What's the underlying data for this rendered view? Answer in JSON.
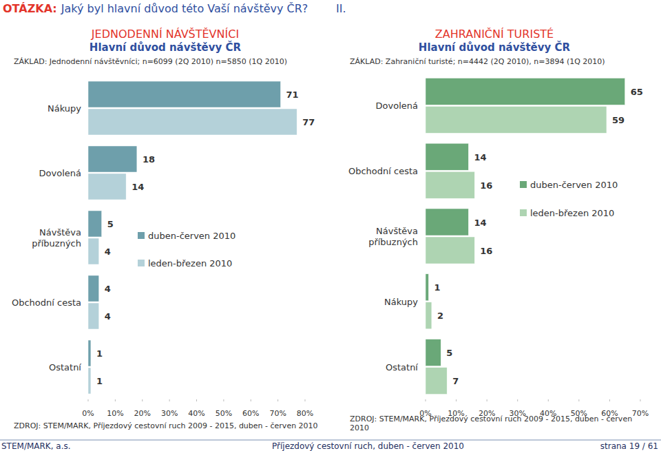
{
  "header": {
    "question_label": "OTÁZKA:",
    "question": "Jaký byl hlavní důvod této Vaší návštěvy ČR?",
    "roman": "II."
  },
  "footer": {
    "left": "STEM/MARK, a.s.",
    "center": "Příjezdový cestovní ruch, duben - červen 2010",
    "right": "strana 19 / 61"
  },
  "chart_data": [
    {
      "type": "bar",
      "orientation": "horizontal",
      "title": "JEDNODENNÍ NÁVŠTĚVNÍCI",
      "subtitle": "Hlavní důvod návštěvy ČR",
      "annotations": [
        "ZÁKLAD: Jednodenní návštěvníci; n=6099 (2Q 2010) n=5850 (1Q 2010)",
        "ZDROJ: STEM/MARK, Příjezdový cestovní ruch 2009 - 2015, duben - červen 2010"
      ],
      "categories": [
        "Nákupy",
        "Dovolená",
        "Návštěva příbuzných",
        "Obchodní cesta",
        "Ostatní"
      ],
      "series": [
        {
          "name": "duben-červen 2010",
          "color": "#6e9fab",
          "values": [
            71,
            18,
            5,
            4,
            1
          ]
        },
        {
          "name": "leden-březen 2010",
          "color": "#b4d1d9",
          "values": [
            77,
            14,
            4,
            4,
            1
          ]
        }
      ],
      "xlim": [
        0,
        80
      ],
      "xticks": [
        {
          "value": 0,
          "label": "0%"
        },
        {
          "value": 10,
          "label": "10%"
        },
        {
          "value": 20,
          "label": "20%"
        },
        {
          "value": 30,
          "label": "30%"
        },
        {
          "value": 40,
          "label": "40%"
        },
        {
          "value": 50,
          "label": "50%"
        },
        {
          "value": 60,
          "label": "60%"
        },
        {
          "value": 70,
          "label": "70%"
        },
        {
          "value": 80,
          "label": "80%"
        }
      ],
      "data_labels": true,
      "legend": "right",
      "grid": false
    },
    {
      "type": "bar",
      "orientation": "horizontal",
      "title": "ZAHRANIČNÍ TURISTÉ",
      "subtitle": "Hlavní důvod návštěvy ČR",
      "annotations": [
        "ZÁKLAD: Zahraniční turisté; n=4442 (2Q 2010), n=3894 (1Q 2010)",
        "ZDROJ: STEM/MARK, Příjezdový cestovní ruch 2009 - 2015, duben - červen 2010"
      ],
      "categories": [
        "Dovolená",
        "Obchodní cesta",
        "Návštěva příbuzných",
        "Nákupy",
        "Ostatní"
      ],
      "series": [
        {
          "name": "duben-červen 2010",
          "color": "#6aa878",
          "values": [
            65,
            14,
            14,
            1,
            5
          ]
        },
        {
          "name": "leden-březen 2010",
          "color": "#aed4b2",
          "values": [
            59,
            16,
            16,
            2,
            7
          ]
        }
      ],
      "xlim": [
        0,
        70
      ],
      "xticks": [
        {
          "value": 0,
          "label": "0%"
        },
        {
          "value": 10,
          "label": "10%"
        },
        {
          "value": 20,
          "label": "20%"
        },
        {
          "value": 30,
          "label": "30%"
        },
        {
          "value": 40,
          "label": "40%"
        },
        {
          "value": 50,
          "label": "50%"
        },
        {
          "value": 60,
          "label": "60%"
        },
        {
          "value": 70,
          "label": "70%"
        }
      ],
      "data_labels": true,
      "legend": "right",
      "grid": false
    }
  ]
}
